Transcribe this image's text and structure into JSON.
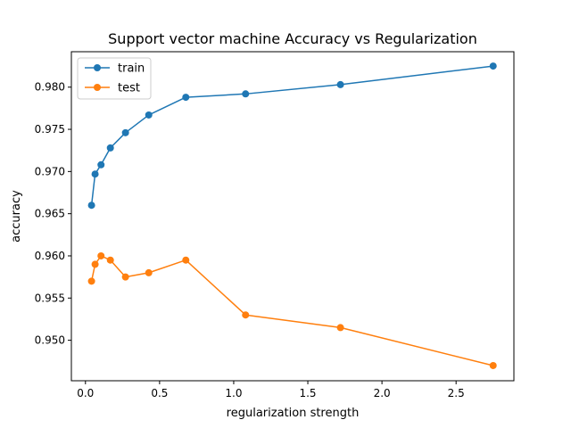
{
  "chart_data": {
    "type": "line",
    "title": "Support vector machine Accuracy vs Regularization",
    "xlabel": "regularization strength",
    "ylabel": "accuracy",
    "xlim": [
      -0.095,
      2.89
    ],
    "ylim": [
      0.9452,
      0.9842
    ],
    "xticks": [
      0.0,
      0.5,
      1.0,
      1.5,
      2.0,
      2.5
    ],
    "xtick_labels": [
      "0.0",
      "0.5",
      "1.0",
      "1.5",
      "2.0",
      "2.5"
    ],
    "yticks": [
      0.95,
      0.955,
      0.96,
      0.965,
      0.97,
      0.975,
      0.98
    ],
    "ytick_labels": [
      "0.950",
      "0.955",
      "0.960",
      "0.965",
      "0.970",
      "0.975",
      "0.980"
    ],
    "grid": false,
    "legend_position": "top-left",
    "x": [
      0.041,
      0.065,
      0.105,
      0.168,
      0.27,
      0.427,
      0.677,
      1.08,
      1.72,
      2.75
    ],
    "series": [
      {
        "name": "train",
        "color": "#1f77b4",
        "values": [
          0.966,
          0.9697,
          0.9708,
          0.9728,
          0.9746,
          0.9767,
          0.9788,
          0.9792,
          0.9803,
          0.9825
        ]
      },
      {
        "name": "test",
        "color": "#ff7f0e",
        "values": [
          0.957,
          0.959,
          0.96,
          0.9595,
          0.9575,
          0.958,
          0.9595,
          0.953,
          0.9515,
          0.947
        ]
      }
    ]
  }
}
